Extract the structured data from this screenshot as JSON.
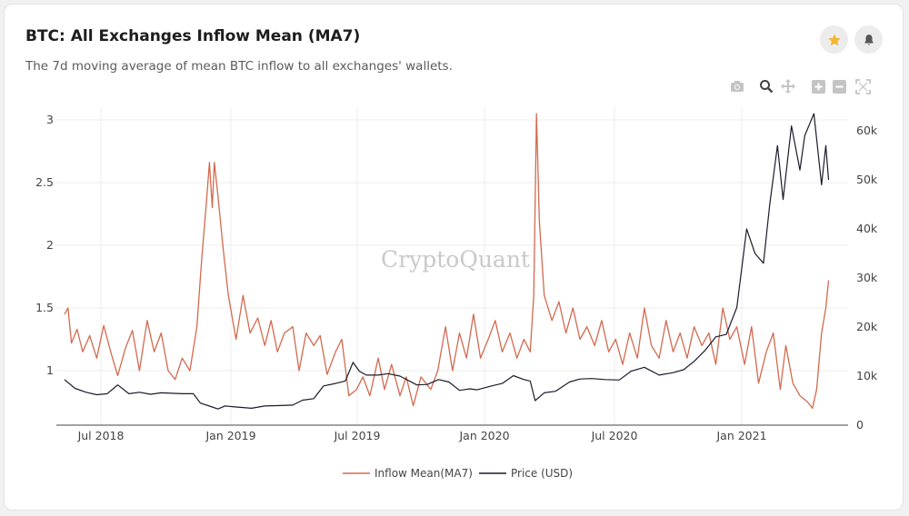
{
  "header": {
    "title": "BTC: All Exchanges Inflow Mean (MA7)",
    "subtitle": "The 7d moving average of mean BTC inflow to all exchanges' wallets."
  },
  "actions": {
    "favorite_icon": "star-icon",
    "alert_icon": "bell-icon"
  },
  "modebar": [
    "camera-icon",
    "zoom-icon",
    "pan-icon",
    "zoom-in-icon",
    "zoom-out-icon",
    "autoscale-icon"
  ],
  "watermark": "CryptoQuant",
  "colors": {
    "inflow": "#d26a4e",
    "price": "#1b1b2b",
    "star": "#f2b733",
    "grid": "#ececec"
  },
  "chart_data": {
    "type": "line",
    "title": "BTC: All Exchanges Inflow Mean (MA7)",
    "x_tick_labels": [
      "Jul 2018",
      "Jan 2019",
      "Jul 2019",
      "Jan 2020",
      "Jul 2020",
      "Jan 2021"
    ],
    "y_left": {
      "ticks": [
        "1",
        "1.5",
        "2",
        "2.5",
        "3"
      ],
      "range": [
        0.65,
        3.1
      ]
    },
    "y_right": {
      "ticks": [
        "0",
        "10k",
        "20k",
        "30k",
        "40k",
        "50k",
        "60k"
      ],
      "range": [
        0,
        64000
      ]
    },
    "grid": true,
    "legend": "bottom-center",
    "series": [
      {
        "name": "Inflow Mean(MA7)",
        "axis": "left",
        "color": "#d26a4e",
        "points": [
          [
            "2018-05-10",
            1.45
          ],
          [
            "2018-05-15",
            1.5
          ],
          [
            "2018-05-20",
            1.22
          ],
          [
            "2018-05-28",
            1.33
          ],
          [
            "2018-06-05",
            1.15
          ],
          [
            "2018-06-15",
            1.28
          ],
          [
            "2018-06-25",
            1.1
          ],
          [
            "2018-07-05",
            1.36
          ],
          [
            "2018-07-15",
            1.15
          ],
          [
            "2018-07-25",
            0.96
          ],
          [
            "2018-08-05",
            1.18
          ],
          [
            "2018-08-15",
            1.32
          ],
          [
            "2018-08-25",
            1.0
          ],
          [
            "2018-09-05",
            1.4
          ],
          [
            "2018-09-15",
            1.15
          ],
          [
            "2018-09-25",
            1.3
          ],
          [
            "2018-10-05",
            1.0
          ],
          [
            "2018-10-15",
            0.93
          ],
          [
            "2018-10-25",
            1.1
          ],
          [
            "2018-11-05",
            1.0
          ],
          [
            "2018-11-15",
            1.35
          ],
          [
            "2018-11-22",
            1.9
          ],
          [
            "2018-11-28",
            2.3
          ],
          [
            "2018-12-03",
            2.66
          ],
          [
            "2018-12-07",
            2.3
          ],
          [
            "2018-12-10",
            2.66
          ],
          [
            "2018-12-15",
            2.4
          ],
          [
            "2018-12-22",
            2.0
          ],
          [
            "2018-12-30",
            1.6
          ],
          [
            "2019-01-10",
            1.25
          ],
          [
            "2019-01-20",
            1.6
          ],
          [
            "2019-01-30",
            1.3
          ],
          [
            "2019-02-10",
            1.42
          ],
          [
            "2019-02-20",
            1.2
          ],
          [
            "2019-03-01",
            1.4
          ],
          [
            "2019-03-10",
            1.15
          ],
          [
            "2019-03-20",
            1.3
          ],
          [
            "2019-04-01",
            1.35
          ],
          [
            "2019-04-10",
            1.0
          ],
          [
            "2019-04-20",
            1.3
          ],
          [
            "2019-05-01",
            1.2
          ],
          [
            "2019-05-10",
            1.28
          ],
          [
            "2019-05-20",
            0.97
          ],
          [
            "2019-06-01",
            1.15
          ],
          [
            "2019-06-10",
            1.25
          ],
          [
            "2019-06-20",
            0.8
          ],
          [
            "2019-07-01",
            0.85
          ],
          [
            "2019-07-10",
            0.95
          ],
          [
            "2019-07-20",
            0.8
          ],
          [
            "2019-08-01",
            1.1
          ],
          [
            "2019-08-10",
            0.85
          ],
          [
            "2019-08-20",
            1.05
          ],
          [
            "2019-09-01",
            0.8
          ],
          [
            "2019-09-10",
            0.95
          ],
          [
            "2019-09-20",
            0.72
          ],
          [
            "2019-10-01",
            0.95
          ],
          [
            "2019-10-15",
            0.85
          ],
          [
            "2019-10-25",
            1.0
          ],
          [
            "2019-11-05",
            1.35
          ],
          [
            "2019-11-15",
            1.0
          ],
          [
            "2019-11-25",
            1.3
          ],
          [
            "2019-12-05",
            1.1
          ],
          [
            "2019-12-15",
            1.45
          ],
          [
            "2019-12-25",
            1.1
          ],
          [
            "2020-01-05",
            1.25
          ],
          [
            "2020-01-15",
            1.4
          ],
          [
            "2020-01-25",
            1.15
          ],
          [
            "2020-02-05",
            1.3
          ],
          [
            "2020-02-15",
            1.1
          ],
          [
            "2020-02-25",
            1.25
          ],
          [
            "2020-03-05",
            1.15
          ],
          [
            "2020-03-10",
            1.6
          ],
          [
            "2020-03-14",
            3.05
          ],
          [
            "2020-03-18",
            2.2
          ],
          [
            "2020-03-25",
            1.6
          ],
          [
            "2020-04-05",
            1.4
          ],
          [
            "2020-04-15",
            1.55
          ],
          [
            "2020-04-25",
            1.3
          ],
          [
            "2020-05-05",
            1.5
          ],
          [
            "2020-05-15",
            1.25
          ],
          [
            "2020-05-25",
            1.35
          ],
          [
            "2020-06-05",
            1.2
          ],
          [
            "2020-06-15",
            1.4
          ],
          [
            "2020-06-25",
            1.15
          ],
          [
            "2020-07-05",
            1.25
          ],
          [
            "2020-07-15",
            1.05
          ],
          [
            "2020-07-25",
            1.3
          ],
          [
            "2020-08-05",
            1.1
          ],
          [
            "2020-08-15",
            1.5
          ],
          [
            "2020-08-25",
            1.2
          ],
          [
            "2020-09-05",
            1.1
          ],
          [
            "2020-09-15",
            1.4
          ],
          [
            "2020-09-25",
            1.15
          ],
          [
            "2020-10-05",
            1.3
          ],
          [
            "2020-10-15",
            1.1
          ],
          [
            "2020-10-25",
            1.35
          ],
          [
            "2020-11-05",
            1.2
          ],
          [
            "2020-11-15",
            1.3
          ],
          [
            "2020-11-25",
            1.05
          ],
          [
            "2020-12-05",
            1.5
          ],
          [
            "2020-12-15",
            1.25
          ],
          [
            "2020-12-25",
            1.35
          ],
          [
            "2021-01-05",
            1.05
          ],
          [
            "2021-01-15",
            1.35
          ],
          [
            "2021-01-25",
            0.9
          ],
          [
            "2021-02-05",
            1.15
          ],
          [
            "2021-02-15",
            1.3
          ],
          [
            "2021-02-25",
            0.85
          ],
          [
            "2021-03-05",
            1.2
          ],
          [
            "2021-03-15",
            0.9
          ],
          [
            "2021-03-25",
            0.8
          ],
          [
            "2021-04-05",
            0.75
          ],
          [
            "2021-04-12",
            0.7
          ],
          [
            "2021-04-18",
            0.85
          ],
          [
            "2021-04-25",
            1.3
          ],
          [
            "2021-05-01",
            1.5
          ],
          [
            "2021-05-05",
            1.72
          ]
        ]
      },
      {
        "name": "Price (USD)",
        "axis": "right",
        "color": "#1b1b2b",
        "points": [
          [
            "2018-05-10",
            9300
          ],
          [
            "2018-05-25",
            7500
          ],
          [
            "2018-06-10",
            6700
          ],
          [
            "2018-06-25",
            6200
          ],
          [
            "2018-07-10",
            6400
          ],
          [
            "2018-07-25",
            8200
          ],
          [
            "2018-08-10",
            6400
          ],
          [
            "2018-08-25",
            6700
          ],
          [
            "2018-09-10",
            6300
          ],
          [
            "2018-09-25",
            6600
          ],
          [
            "2018-10-10",
            6500
          ],
          [
            "2018-10-25",
            6400
          ],
          [
            "2018-11-10",
            6400
          ],
          [
            "2018-11-20",
            4500
          ],
          [
            "2018-12-05",
            3800
          ],
          [
            "2018-12-15",
            3300
          ],
          [
            "2018-12-25",
            3900
          ],
          [
            "2019-01-10",
            3700
          ],
          [
            "2019-02-01",
            3450
          ],
          [
            "2019-02-20",
            3900
          ],
          [
            "2019-03-15",
            4000
          ],
          [
            "2019-04-01",
            4100
          ],
          [
            "2019-04-15",
            5100
          ],
          [
            "2019-05-01",
            5400
          ],
          [
            "2019-05-15",
            8000
          ],
          [
            "2019-06-01",
            8500
          ],
          [
            "2019-06-15",
            9000
          ],
          [
            "2019-06-26",
            12800
          ],
          [
            "2019-07-05",
            11000
          ],
          [
            "2019-07-15",
            10200
          ],
          [
            "2019-08-01",
            10200
          ],
          [
            "2019-08-15",
            10500
          ],
          [
            "2019-09-01",
            10000
          ],
          [
            "2019-09-25",
            8200
          ],
          [
            "2019-10-10",
            8300
          ],
          [
            "2019-10-26",
            9300
          ],
          [
            "2019-11-10",
            8800
          ],
          [
            "2019-11-25",
            7100
          ],
          [
            "2019-12-10",
            7400
          ],
          [
            "2019-12-20",
            7200
          ],
          [
            "2020-01-10",
            8000
          ],
          [
            "2020-01-25",
            8500
          ],
          [
            "2020-02-10",
            10100
          ],
          [
            "2020-02-25",
            9300
          ],
          [
            "2020-03-05",
            9000
          ],
          [
            "2020-03-12",
            5000
          ],
          [
            "2020-03-25",
            6600
          ],
          [
            "2020-04-10",
            6900
          ],
          [
            "2020-04-30",
            8800
          ],
          [
            "2020-05-15",
            9400
          ],
          [
            "2020-06-01",
            9500
          ],
          [
            "2020-06-20",
            9300
          ],
          [
            "2020-07-10",
            9200
          ],
          [
            "2020-07-27",
            11000
          ],
          [
            "2020-08-15",
            11800
          ],
          [
            "2020-09-05",
            10200
          ],
          [
            "2020-09-25",
            10700
          ],
          [
            "2020-10-10",
            11300
          ],
          [
            "2020-10-25",
            13000
          ],
          [
            "2020-11-10",
            15300
          ],
          [
            "2020-11-25",
            18000
          ],
          [
            "2020-12-10",
            18500
          ],
          [
            "2020-12-25",
            24000
          ],
          [
            "2021-01-08",
            40000
          ],
          [
            "2021-01-20",
            35000
          ],
          [
            "2021-02-01",
            33000
          ],
          [
            "2021-02-10",
            45000
          ],
          [
            "2021-02-21",
            57000
          ],
          [
            "2021-03-01",
            46000
          ],
          [
            "2021-03-13",
            61000
          ],
          [
            "2021-03-25",
            52000
          ],
          [
            "2021-04-01",
            59000
          ],
          [
            "2021-04-14",
            63500
          ],
          [
            "2021-04-25",
            49000
          ],
          [
            "2021-05-01",
            57000
          ],
          [
            "2021-05-05",
            50000
          ]
        ]
      }
    ]
  }
}
